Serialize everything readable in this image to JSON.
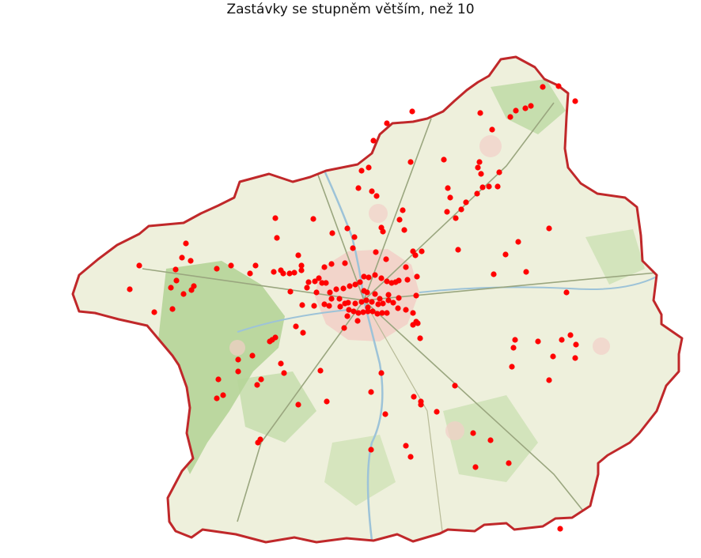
{
  "title": "Zastávky se stupněm větším, než 10",
  "colors": {
    "marker": "#ff0000",
    "border": "#c0282a",
    "land": "#eef0dc",
    "forest": "#a9cf8b",
    "river": "#9dc3d8",
    "road": "#9aa67f",
    "town": "#f2cfc7"
  }
}
